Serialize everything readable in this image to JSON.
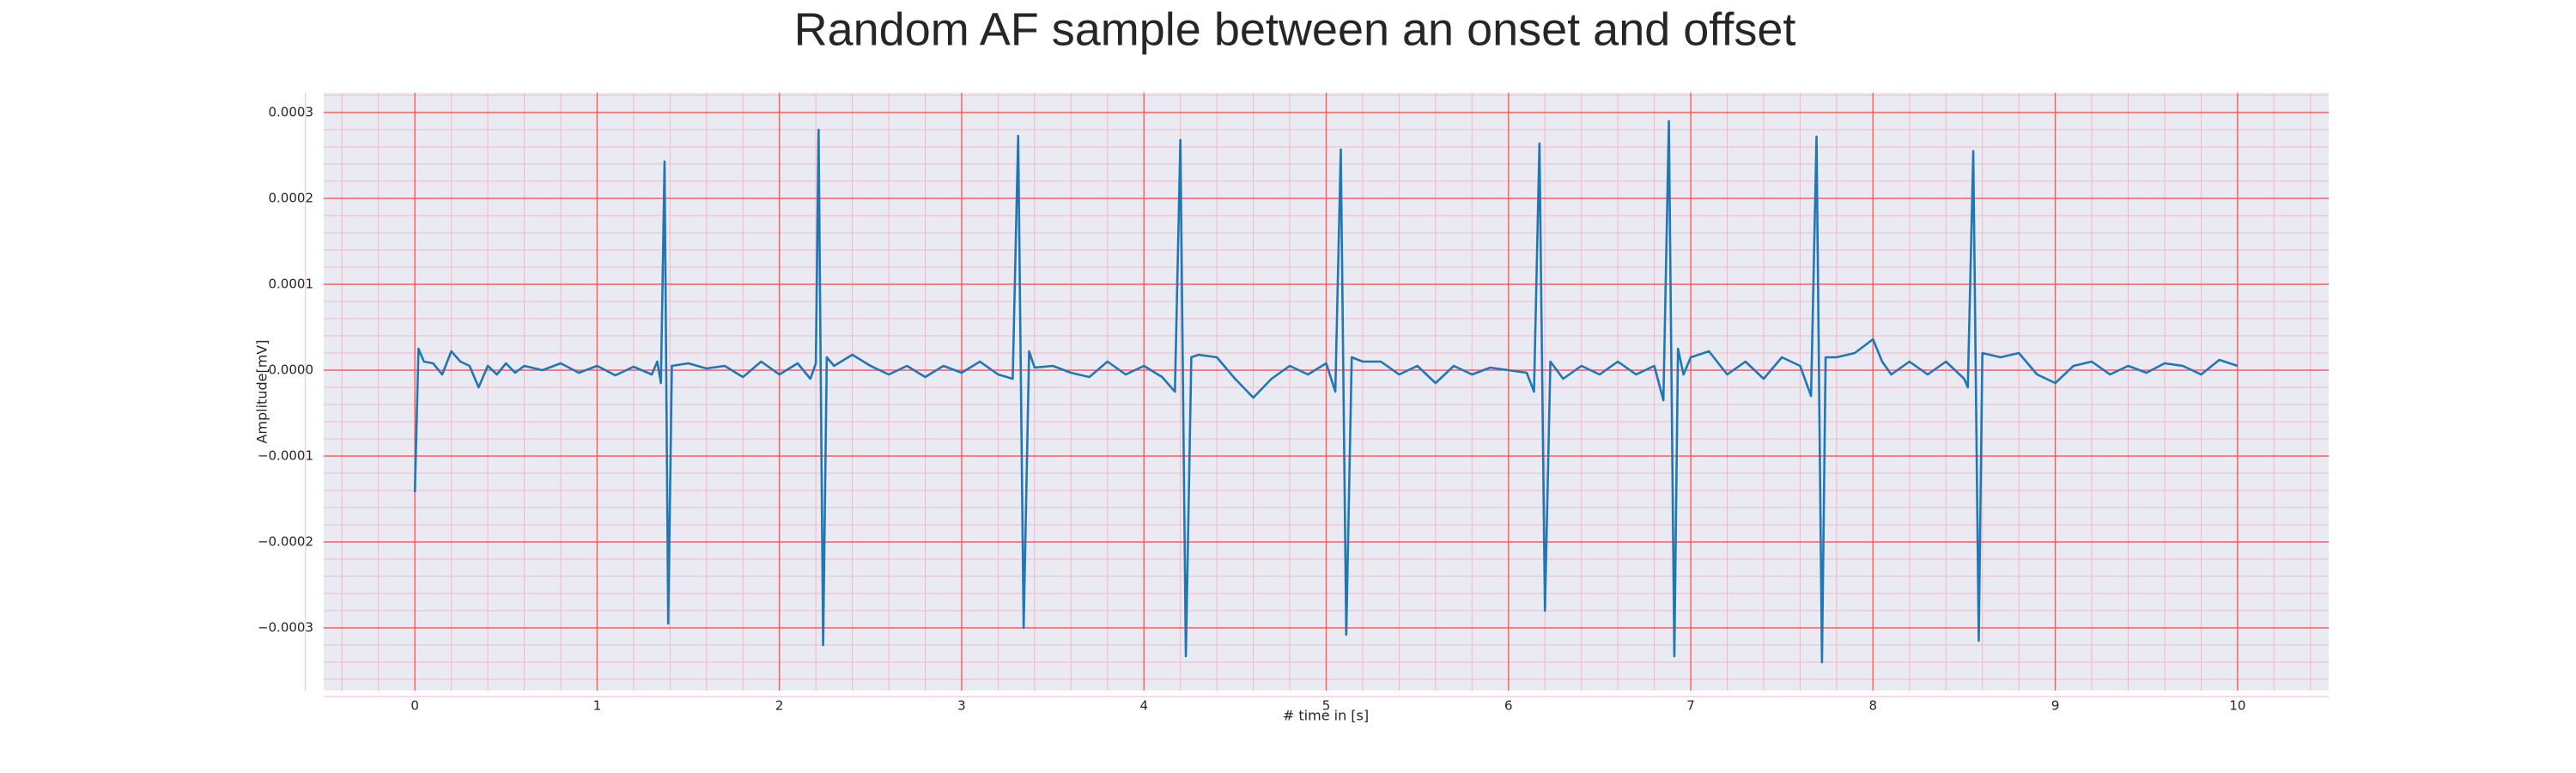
{
  "chart_data": {
    "type": "line",
    "title": "Random AF sample between an onset and offset",
    "xlabel": "# time in [s]",
    "ylabel": "Amplitude[mV]",
    "color": "#1f77b4",
    "grid": true,
    "minor_grid": true,
    "xlim": [
      -0.5,
      10.5
    ],
    "ylim": [
      -0.000373,
      0.000323
    ],
    "xticks": [
      0,
      1,
      2,
      3,
      4,
      5,
      6,
      7,
      8,
      9,
      10
    ],
    "yticks": [
      {
        "value": -0.0003,
        "label": "−0.0003"
      },
      {
        "value": -0.0002,
        "label": "−0.0002"
      },
      {
        "value": -0.0001,
        "label": "−0.0001"
      },
      {
        "value": 0,
        "label": "0.0000"
      },
      0.0001,
      0.0002,
      0.0003
    ],
    "x": [
      0,
      0.02,
      0.05,
      0.1,
      0.15,
      0.2,
      0.25,
      0.3,
      0.35,
      0.4,
      0.45,
      0.5,
      0.55,
      0.6,
      0.7,
      0.8,
      0.9,
      1.0,
      1.1,
      1.2,
      1.3,
      1.33,
      1.35,
      1.37,
      1.39,
      1.41,
      1.5,
      1.6,
      1.7,
      1.8,
      1.9,
      2.0,
      2.1,
      2.17,
      2.2,
      2.215,
      2.24,
      2.26,
      2.3,
      2.4,
      2.5,
      2.6,
      2.7,
      2.8,
      2.9,
      3.0,
      3.1,
      3.2,
      3.28,
      3.31,
      3.34,
      3.37,
      3.4,
      3.5,
      3.6,
      3.7,
      3.8,
      3.9,
      4.0,
      4.1,
      4.17,
      4.2,
      4.23,
      4.26,
      4.3,
      4.4,
      4.5,
      4.6,
      4.7,
      4.8,
      4.9,
      5.0,
      5.05,
      5.08,
      5.11,
      5.14,
      5.2,
      5.3,
      5.4,
      5.5,
      5.6,
      5.7,
      5.8,
      5.9,
      6.0,
      6.1,
      6.14,
      6.17,
      6.2,
      6.23,
      6.3,
      6.4,
      6.5,
      6.6,
      6.7,
      6.8,
      6.85,
      6.88,
      6.91,
      6.93,
      6.96,
      7.0,
      7.1,
      7.2,
      7.3,
      7.4,
      7.5,
      7.6,
      7.66,
      7.69,
      7.72,
      7.74,
      7.8,
      7.9,
      8.0,
      8.05,
      8.1,
      8.2,
      8.3,
      8.4,
      8.5,
      8.52,
      8.55,
      8.58,
      8.6,
      8.7,
      8.8,
      8.9,
      9.0,
      9.1,
      9.2,
      9.3,
      9.4,
      9.5,
      9.6,
      9.7,
      9.8,
      9.9,
      10.0
    ],
    "values": [
      -0.000142,
      2.5e-05,
      1e-05,
      8e-06,
      -5e-06,
      2.2e-05,
      1e-05,
      5e-06,
      -2e-05,
      5e-06,
      -5e-06,
      8e-06,
      -3e-06,
      5e-06,
      0,
      8e-06,
      -3e-06,
      5e-06,
      -6e-06,
      4e-06,
      -5e-06,
      1e-05,
      -1.5e-05,
      0.000243,
      -0.000295,
      5e-06,
      8e-06,
      2e-06,
      5e-06,
      -8e-06,
      1e-05,
      -5e-06,
      8e-06,
      -1e-05,
      8e-06,
      0.00028,
      -0.00032,
      1.5e-05,
      5e-06,
      1.8e-05,
      5e-06,
      -5e-06,
      5e-06,
      -8e-06,
      5e-06,
      -3e-06,
      1e-05,
      -5e-06,
      -1e-05,
      0.000273,
      -0.0003,
      2.2e-05,
      3e-06,
      5e-06,
      -3e-06,
      -8e-06,
      1e-05,
      -5e-06,
      5e-06,
      -8e-06,
      -2.5e-05,
      0.000268,
      -0.000333,
      1.5e-05,
      1.8e-05,
      1.5e-05,
      -1e-05,
      -3.2e-05,
      -1e-05,
      5e-06,
      -5e-06,
      8e-06,
      -2.5e-05,
      0.000257,
      -0.000308,
      1.5e-05,
      1e-05,
      1e-05,
      -5e-06,
      5e-06,
      -1.5e-05,
      5e-06,
      -5e-06,
      3e-06,
      0,
      -3e-06,
      -2.5e-05,
      0.000264,
      -0.00028,
      1e-05,
      -1e-05,
      5e-06,
      -5e-06,
      1e-05,
      -5e-06,
      5e-06,
      -3.5e-05,
      0.00029,
      -0.000333,
      2.5e-05,
      -5e-06,
      1.5e-05,
      2.2e-05,
      -5e-06,
      1e-05,
      -1e-05,
      1.5e-05,
      5e-06,
      -3e-05,
      0.000272,
      -0.00034,
      1.5e-05,
      1.5e-05,
      2e-05,
      3.6e-05,
      1e-05,
      -5e-06,
      1e-05,
      -5e-06,
      1e-05,
      -1e-05,
      -2e-05,
      0.000255,
      -0.000315,
      2e-05,
      1.5e-05,
      2e-05,
      -5e-06,
      -1.5e-05,
      5e-06,
      1e-05,
      -5e-06,
      5e-06,
      -3e-06,
      8e-06,
      5e-06,
      -5e-06,
      1.2e-05,
      5e-06
    ]
  }
}
